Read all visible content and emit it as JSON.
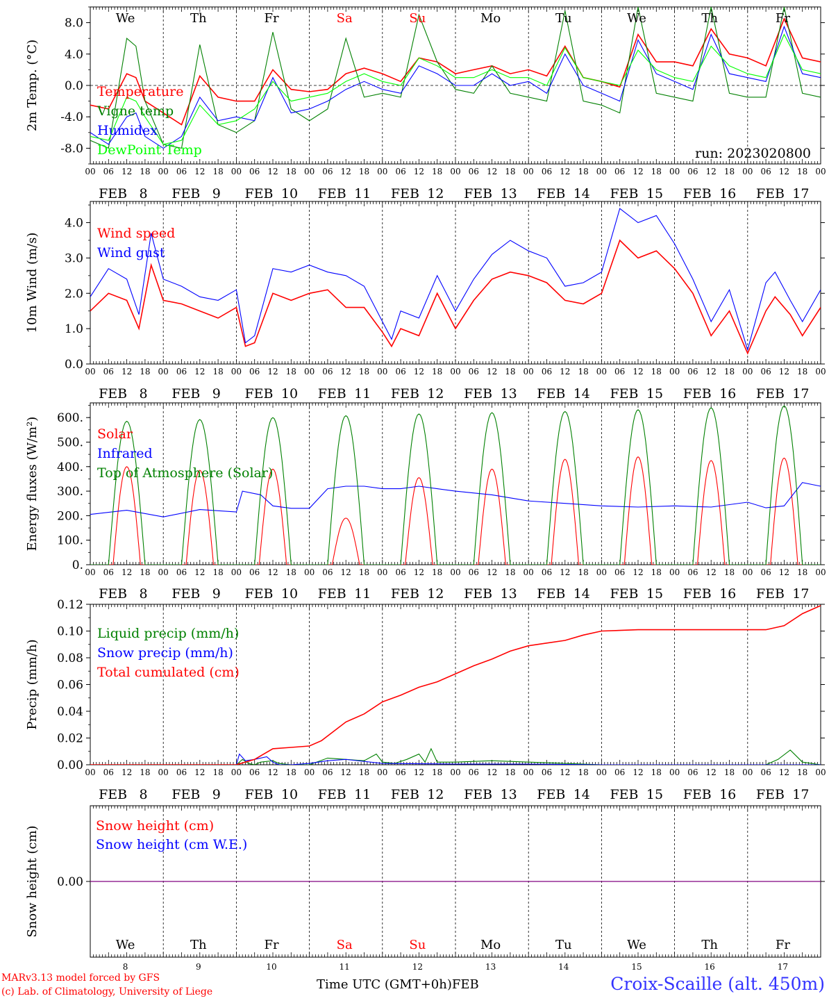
{
  "days": [
    {
      "dow": "We",
      "month": "FEB",
      "day": "8",
      "weekend": false
    },
    {
      "dow": "Th",
      "month": "FEB",
      "day": "9",
      "weekend": false
    },
    {
      "dow": "Fr",
      "month": "FEB",
      "day": "10",
      "weekend": false
    },
    {
      "dow": "Sa",
      "month": "FEB",
      "day": "11",
      "weekend": true
    },
    {
      "dow": "Su",
      "month": "FEB",
      "day": "12",
      "weekend": true
    },
    {
      "dow": "Mo",
      "month": "FEB",
      "day": "13",
      "weekend": false
    },
    {
      "dow": "Tu",
      "month": "FEB",
      "day": "14",
      "weekend": false
    },
    {
      "dow": "We",
      "month": "FEB",
      "day": "15",
      "weekend": false
    },
    {
      "dow": "Th",
      "month": "FEB",
      "day": "16",
      "weekend": false
    },
    {
      "dow": "Fr",
      "month": "FEB",
      "day": "17",
      "weekend": false
    }
  ],
  "hour_ticks": [
    "00",
    "06",
    "12",
    "18"
  ],
  "final_hour_tick": "00",
  "colors": {
    "weekend": "#ff0000",
    "weekday": "#000000",
    "red": "#ff0000",
    "green": "#008000",
    "blue": "#0000ff",
    "lightgreen": "#00ff00",
    "purple": "#800080",
    "station": "#3333ff"
  },
  "run_label": "run: 2023020800",
  "footer": {
    "model": "MARv3.13 model forced by GFS",
    "lab": "(c) Lab. of Climatology, University of Liege",
    "axis_title": "Time UTC (GMT+0h)",
    "month": "FEB",
    "station": "Croix-Scaille (alt. 450m)"
  },
  "chart_data": [
    {
      "id": "temperature",
      "type": "line",
      "ylabel": "2m Temp. (°C)",
      "ylim": [
        -10,
        10
      ],
      "yticks": [
        -8,
        -4,
        0,
        4,
        8
      ],
      "ytick_labels": [
        "-8.0",
        "-4.0",
        "0.0",
        "4.0",
        "8.0"
      ],
      "reference_line": 0,
      "x_unit": "hours since FEB 8 00 UTC",
      "series": [
        {
          "name": "Temperature",
          "color": "red",
          "x": [
            0,
            6,
            12,
            15,
            18,
            24,
            30,
            36,
            42,
            48,
            54,
            60,
            66,
            72,
            78,
            84,
            90,
            96,
            102,
            108,
            114,
            120,
            126,
            132,
            138,
            144,
            150,
            156,
            162,
            168,
            174,
            180,
            186,
            192,
            198,
            204,
            210,
            216,
            222,
            228,
            234,
            240
          ],
          "y": [
            -2.5,
            -3.0,
            1.5,
            1.0,
            -2.0,
            -3.5,
            -5.0,
            1.2,
            -1.5,
            -2.0,
            -2.0,
            2.0,
            -0.5,
            -0.8,
            -0.5,
            1.5,
            2.2,
            1.5,
            0.5,
            3.5,
            3.0,
            1.5,
            2.0,
            2.5,
            1.5,
            2.0,
            1.2,
            5.0,
            1.0,
            0.5,
            -0.2,
            6.5,
            3.0,
            3.0,
            2.5,
            7.2,
            4.0,
            3.5,
            2.5,
            8.5,
            3.5,
            3.0
          ]
        },
        {
          "name": "Vigne temp",
          "color": "green",
          "x": [
            0,
            6,
            12,
            15,
            18,
            24,
            30,
            36,
            42,
            48,
            54,
            60,
            66,
            72,
            78,
            84,
            90,
            96,
            102,
            108,
            114,
            120,
            126,
            132,
            138,
            144,
            150,
            156,
            162,
            168,
            174,
            180,
            186,
            192,
            198,
            204,
            210,
            216,
            222,
            228,
            234,
            240
          ],
          "y": [
            -7.0,
            -8.0,
            6.0,
            5.0,
            -2.0,
            -7.5,
            -8.0,
            5.2,
            -5.0,
            -6.0,
            -4.5,
            6.8,
            -3.0,
            -4.5,
            -3.0,
            6.0,
            -1.5,
            -1.0,
            -1.5,
            9.0,
            3.0,
            -0.5,
            -1.0,
            2.5,
            -1.0,
            -1.5,
            -2.0,
            9.5,
            -2.0,
            -2.5,
            -3.5,
            10.0,
            -1.0,
            -1.5,
            -2.0,
            10.0,
            -1.0,
            -1.5,
            -1.5,
            10.0,
            -1.0,
            -1.5
          ]
        },
        {
          "name": "Humidex",
          "color": "blue",
          "x": [
            0,
            6,
            12,
            15,
            18,
            24,
            30,
            36,
            42,
            48,
            54,
            60,
            66,
            72,
            78,
            84,
            90,
            96,
            102,
            108,
            114,
            120,
            126,
            132,
            138,
            144,
            150,
            156,
            162,
            168,
            174,
            180,
            186,
            192,
            198,
            204,
            210,
            216,
            222,
            228,
            234,
            240
          ],
          "y": [
            -6.0,
            -7.5,
            -4.0,
            -3.5,
            -6.5,
            -8.0,
            -6.5,
            -1.5,
            -4.5,
            -4.0,
            -4.5,
            1.0,
            -3.5,
            -3.0,
            -2.0,
            -0.5,
            0.5,
            -0.5,
            -1.0,
            2.5,
            1.5,
            0.0,
            0.0,
            1.5,
            0.0,
            0.5,
            -1.0,
            4.0,
            0.0,
            -1.0,
            -2.0,
            5.8,
            1.5,
            0.5,
            -0.5,
            6.5,
            1.5,
            1.0,
            0.5,
            7.5,
            1.5,
            1.0
          ]
        },
        {
          "name": "DewPoint Temp",
          "color": "lightgreen",
          "x": [
            0,
            6,
            12,
            15,
            18,
            24,
            30,
            36,
            42,
            48,
            54,
            60,
            66,
            72,
            78,
            84,
            90,
            96,
            102,
            108,
            114,
            120,
            126,
            132,
            138,
            144,
            150,
            156,
            162,
            168,
            174,
            180,
            186,
            192,
            198,
            204,
            210,
            216,
            222,
            228,
            234,
            240
          ],
          "y": [
            -6.5,
            -7.0,
            -1.5,
            -2.0,
            -4.0,
            -7.5,
            -7.0,
            -2.5,
            -5.0,
            -4.5,
            -3.0,
            0.5,
            -2.0,
            -1.5,
            -1.0,
            0.5,
            1.5,
            0.5,
            0.0,
            3.5,
            2.5,
            1.0,
            1.0,
            2.0,
            1.0,
            1.0,
            0.0,
            4.8,
            1.0,
            0.5,
            0.0,
            4.5,
            2.0,
            1.0,
            0.5,
            5.0,
            2.5,
            1.5,
            1.0,
            6.5,
            2.0,
            1.5
          ]
        }
      ]
    },
    {
      "id": "wind",
      "type": "line",
      "ylabel": "10m Wind (m/s)",
      "ylim": [
        0,
        4.6
      ],
      "yticks": [
        0,
        1,
        2,
        3,
        4
      ],
      "ytick_labels": [
        "0.0",
        "1.0",
        "2.0",
        "3.0",
        "4.0"
      ],
      "x_unit": "hours since FEB 8 00 UTC",
      "series": [
        {
          "name": "Wind speed",
          "color": "red",
          "x": [
            0,
            6,
            12,
            16,
            20,
            24,
            30,
            36,
            42,
            48,
            51,
            54,
            60,
            66,
            72,
            78,
            84,
            90,
            96,
            99,
            102,
            108,
            114,
            120,
            126,
            132,
            138,
            144,
            150,
            156,
            162,
            168,
            174,
            180,
            186,
            192,
            198,
            204,
            210,
            216,
            222,
            225,
            230,
            234,
            240
          ],
          "y": [
            1.5,
            2.0,
            1.8,
            1.0,
            2.8,
            1.8,
            1.7,
            1.5,
            1.3,
            1.6,
            0.5,
            0.6,
            2.0,
            1.8,
            2.0,
            2.1,
            1.6,
            1.6,
            0.9,
            0.5,
            1.0,
            0.8,
            2.0,
            1.0,
            1.8,
            2.4,
            2.6,
            2.5,
            2.3,
            1.8,
            1.7,
            2.0,
            3.5,
            3.0,
            3.2,
            2.7,
            2.0,
            0.8,
            1.5,
            0.3,
            1.5,
            1.9,
            1.4,
            0.8,
            1.6
          ]
        },
        {
          "name": "Wind gust",
          "color": "blue",
          "x": [
            0,
            6,
            12,
            16,
            20,
            24,
            30,
            36,
            42,
            48,
            51,
            54,
            60,
            66,
            72,
            78,
            84,
            90,
            96,
            99,
            102,
            108,
            114,
            120,
            126,
            132,
            138,
            144,
            150,
            156,
            162,
            168,
            174,
            180,
            186,
            192,
            198,
            204,
            210,
            216,
            222,
            225,
            230,
            234,
            240
          ],
          "y": [
            1.9,
            2.7,
            2.4,
            1.4,
            3.7,
            2.4,
            2.2,
            1.9,
            1.8,
            2.1,
            0.6,
            0.8,
            2.7,
            2.6,
            2.8,
            2.6,
            2.5,
            2.2,
            1.2,
            0.7,
            1.5,
            1.3,
            2.5,
            1.5,
            2.4,
            3.1,
            3.5,
            3.2,
            3.0,
            2.2,
            2.3,
            2.6,
            4.4,
            4.0,
            4.2,
            3.4,
            2.4,
            1.2,
            2.1,
            0.4,
            2.3,
            2.6,
            1.8,
            1.2,
            2.1
          ]
        }
      ]
    },
    {
      "id": "energy",
      "type": "line",
      "ylabel": "Energy fluxes (W/m²)",
      "ylim": [
        0,
        660
      ],
      "yticks": [
        0,
        100,
        200,
        300,
        400,
        500,
        600
      ],
      "ytick_labels": [
        "0.",
        "100.",
        "200.",
        "300.",
        "400.",
        "500.",
        "600."
      ],
      "x_unit": "hours since FEB 8 00 UTC",
      "series": [
        {
          "name": "Solar",
          "color": "red",
          "kind": "daily_peaks",
          "sunrise_offset_h": 7.5,
          "sunset_offset_h": 16.5,
          "values": [
            400,
            385,
            390,
            190,
            355,
            390,
            430,
            440,
            425,
            435
          ]
        },
        {
          "name": "Infrared",
          "color": "blue",
          "x": [
            0,
            12,
            24,
            36,
            48,
            50,
            56,
            60,
            66,
            72,
            78,
            84,
            90,
            96,
            102,
            108,
            114,
            120,
            132,
            144,
            156,
            168,
            180,
            192,
            204,
            216,
            222,
            228,
            234,
            240
          ],
          "y": [
            205,
            222,
            195,
            225,
            215,
            300,
            285,
            240,
            230,
            230,
            310,
            320,
            320,
            310,
            310,
            320,
            310,
            300,
            285,
            260,
            250,
            240,
            235,
            240,
            235,
            255,
            232,
            240,
            335,
            320
          ]
        },
        {
          "name": "Top of Atmosphere (Solar)",
          "color": "green",
          "kind": "daily_peaks",
          "sunrise_offset_h": 6.0,
          "sunset_offset_h": 18.0,
          "values": [
            585,
            592,
            600,
            608,
            615,
            620,
            625,
            632,
            640,
            648
          ]
        }
      ]
    },
    {
      "id": "precip",
      "type": "line",
      "ylabel": "Precip (mm/h)",
      "ylim": [
        0,
        0.12
      ],
      "yticks": [
        0,
        0.02,
        0.04,
        0.06,
        0.08,
        0.1,
        0.12
      ],
      "ytick_labels": [
        "0.00",
        "0.02",
        "0.04",
        "0.06",
        "0.08",
        "0.10",
        "0.12"
      ],
      "x_unit": "hours since FEB 8 00 UTC",
      "series": [
        {
          "name": "Liquid precip (mm/h)",
          "color": "green",
          "x": [
            0,
            48,
            50,
            52,
            54,
            56,
            60,
            62,
            66,
            72,
            78,
            84,
            90,
            94,
            96,
            100,
            104,
            108,
            110,
            112,
            114,
            120,
            132,
            144,
            156,
            168,
            200,
            222,
            226,
            230,
            234,
            240
          ],
          "y": [
            0,
            0,
            0.004,
            0.001,
            0,
            0.002,
            0.003,
            0.001,
            0,
            0,
            0.005,
            0.004,
            0.003,
            0.008,
            0.002,
            0.001,
            0.004,
            0.008,
            0.002,
            0.012,
            0.002,
            0.002,
            0.003,
            0.002,
            0.001,
            0,
            0,
            0,
            0.004,
            0.011,
            0.002,
            0
          ]
        },
        {
          "name": "Snow precip (mm/h)",
          "color": "blue",
          "x": [
            0,
            48,
            49,
            51,
            54,
            58,
            60,
            62,
            66,
            72,
            78,
            84,
            96,
            120,
            144,
            168,
            240
          ],
          "y": [
            0,
            0,
            0.008,
            0.003,
            0.004,
            0.006,
            0.002,
            0,
            0,
            0.001,
            0.003,
            0.004,
            0.001,
            0.0005,
            0.0005,
            0,
            0
          ]
        },
        {
          "name": "Total cumulated (cm)",
          "color": "red",
          "x": [
            0,
            48,
            54,
            60,
            66,
            72,
            76,
            84,
            90,
            96,
            102,
            108,
            114,
            120,
            126,
            132,
            138,
            144,
            150,
            156,
            162,
            168,
            180,
            192,
            204,
            216,
            222,
            228,
            234,
            240
          ],
          "y": [
            0,
            0,
            0.004,
            0.012,
            0.013,
            0.014,
            0.018,
            0.032,
            0.038,
            0.047,
            0.052,
            0.058,
            0.062,
            0.068,
            0.074,
            0.079,
            0.085,
            0.089,
            0.091,
            0.093,
            0.097,
            0.1,
            0.101,
            0.101,
            0.101,
            0.101,
            0.101,
            0.104,
            0.113,
            0.119
          ]
        }
      ]
    },
    {
      "id": "snow",
      "type": "line",
      "ylabel": "Snow height (cm)",
      "ylim": [
        -1,
        1
      ],
      "yticks": [
        0
      ],
      "ytick_labels": [
        "0.00"
      ],
      "x_unit": "hours since FEB 8 00 UTC",
      "series": [
        {
          "name": "Snow height (cm)",
          "color": "red",
          "x": [
            0,
            240
          ],
          "y": [
            0,
            0
          ]
        },
        {
          "name": "Snow height (cm W.E.)",
          "color": "blue",
          "x": [
            0,
            240
          ],
          "y": [
            0,
            0
          ]
        }
      ]
    }
  ]
}
